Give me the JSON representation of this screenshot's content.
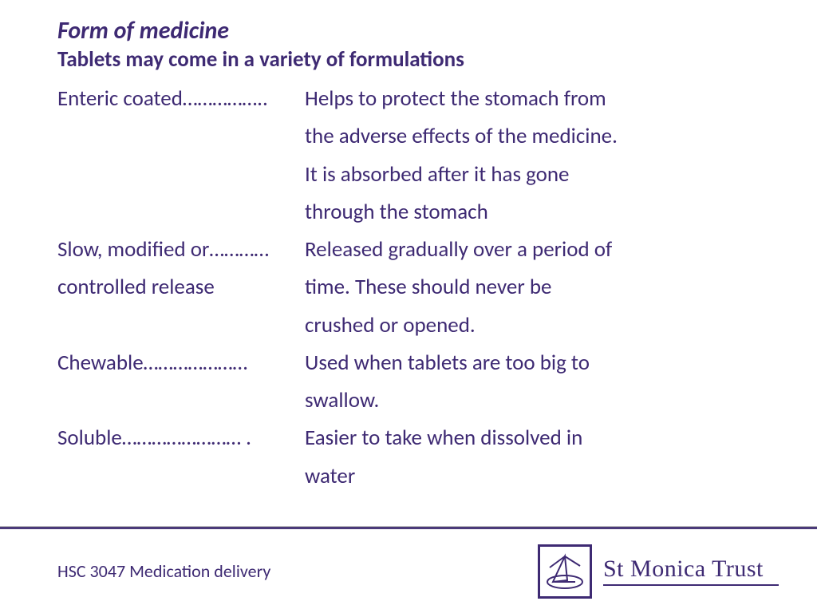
{
  "colors": {
    "text": "#3e2a73",
    "rule": "#4b3a7a",
    "footer_bg": "#ffffff"
  },
  "title": "Form of medicine",
  "subtitle": "Tablets may come in a variety of formulations",
  "items": [
    {
      "term_lines": [
        "Enteric coated…………….."
      ],
      "desc_lines": [
        "Helps to protect the stomach from",
        " the adverse effects of the medicine.",
        " It is absorbed after it has gone",
        " through the stomach"
      ]
    },
    {
      "term_lines": [
        "Slow, modified or…………",
        "controlled release"
      ],
      "desc_lines": [
        "Released gradually over a period of",
        "time.  These should never be",
        " crushed or opened."
      ]
    },
    {
      "term_lines": [
        "Chewable…………………"
      ],
      "desc_lines": [
        "Used when tablets are too big to",
        " swallow."
      ]
    },
    {
      "term_lines": [
        "Soluble…………………… ."
      ],
      "desc_lines": [
        "Easier to take when dissolved in",
        " water"
      ]
    }
  ],
  "footer": {
    "left": "HSC 3047 Medication delivery",
    "org": "St Monica Trust"
  }
}
